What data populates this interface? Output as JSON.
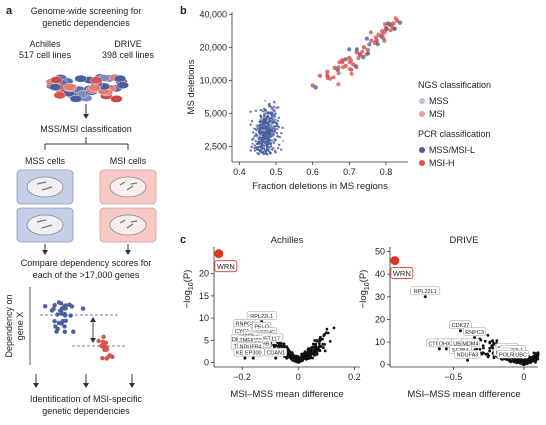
{
  "colors": {
    "mss_blue": "#4a5f9c",
    "msi_red": "#d9534f",
    "msi_pink": "#e8a0a0",
    "mss_cell_bg": "#c5cfe8",
    "msi_cell_bg": "#f6c9c6",
    "wrn_red": "#e0342b"
  },
  "panel_a": {
    "label": "a",
    "title_line1": "Genome-wide screening for",
    "title_line2": "genetic dependencies",
    "screen1_name": "Achilles",
    "screen1_count": "517 cell lines",
    "screen2_name": "DRIVE",
    "screen2_count": "398 cell lines",
    "classification": "MSS/MSI classification",
    "mss_cells": "MSS cells",
    "msi_cells": "MSI cells",
    "compare_line1": "Compare dependency scores for",
    "compare_line2": "each of the >17,000 genes",
    "ylabel_line1": "Dependency on",
    "ylabel_line2": "gene X",
    "ident_line1": "Identification of MSI-specific",
    "ident_line2": "genetic dependencies"
  },
  "chart_data": [
    {
      "panel": "b",
      "type": "scatter",
      "xlabel": "Fraction deletions in MS regions",
      "ylabel": "MS deletions",
      "log_y": true,
      "xlim": [
        0.38,
        0.86
      ],
      "ylim": [
        1800,
        42000
      ],
      "x_ticks": [
        0.4,
        0.5,
        0.6,
        0.7,
        0.8
      ],
      "x_tick_labels": [
        "0.4",
        "0.5",
        "0.6",
        "0.7",
        "0.8"
      ],
      "y_ticks": [
        2500,
        5000,
        10000,
        20000,
        40000
      ],
      "y_tick_labels": [
        "2,500",
        "5,000",
        "10,000",
        "20,000",
        "40,000"
      ],
      "legend": {
        "placement": "right",
        "ngs_title": "NGS classification",
        "ngs_items": [
          "MSS",
          "MSI"
        ],
        "pcr_title": "PCR classification",
        "pcr_items": [
          "MSS/MSI-L",
          "MSI-H"
        ]
      },
      "series": [
        {
          "name": "MSS",
          "x_range": [
            0.42,
            0.54
          ],
          "y_range": [
            2100,
            6500
          ],
          "approx_count": 500
        },
        {
          "name": "MSI",
          "points": [
            [
              0.6,
              9000
            ],
            [
              0.62,
              11000
            ],
            [
              0.64,
              12000
            ],
            [
              0.66,
              13000
            ],
            [
              0.68,
              15000
            ],
            [
              0.7,
              16000
            ],
            [
              0.72,
              18000
            ],
            [
              0.74,
              20000
            ],
            [
              0.76,
              23000
            ],
            [
              0.78,
              26000
            ],
            [
              0.8,
              30000
            ],
            [
              0.82,
              33000
            ],
            [
              0.71,
              14000
            ],
            [
              0.75,
              19000
            ],
            [
              0.79,
              28000
            ],
            [
              0.73,
              17000
            ],
            [
              0.77,
              22000
            ],
            [
              0.81,
              32000
            ],
            [
              0.83,
              35000
            ],
            [
              0.69,
              13500
            ]
          ]
        }
      ]
    },
    {
      "panel": "c",
      "type": "scatter",
      "title": "Achilles",
      "xlabel": "MSI–MSS mean difference",
      "ylabel": "−log10(P)",
      "xlim": [
        -0.3,
        0.22
      ],
      "ylim": [
        -1,
        26
      ],
      "x_ticks": [
        -0.2,
        0,
        0.2
      ],
      "x_tick_labels": [
        "−0.2",
        "0",
        "0.2"
      ],
      "y_ticks": [
        0,
        5,
        10,
        15,
        20
      ],
      "y_tick_labels": [
        "0",
        "5",
        "10",
        "15",
        "20"
      ],
      "labeled_points": [
        {
          "label": "WRN",
          "x": -0.29,
          "y": 24.5,
          "highlight": true
        },
        {
          "label": "RPL22L1",
          "x": -0.13,
          "y": 9.2
        },
        {
          "label": "RNPC3",
          "x": -0.19,
          "y": 7.5
        },
        {
          "label": "PELO",
          "x": -0.13,
          "y": 6.8
        },
        {
          "label": "CYC1",
          "x": -0.2,
          "y": 5.8
        },
        {
          "label": "SDHC",
          "x": -0.11,
          "y": 5.6
        },
        {
          "label": "NDUFS3",
          "x": -0.15,
          "y": 4.8
        },
        {
          "label": "CDC25",
          "x": -0.12,
          "y": 4.5
        },
        {
          "label": "PET117",
          "x": -0.1,
          "y": 4.2
        },
        {
          "label": "DHODH",
          "x": -0.2,
          "y": 4.0
        },
        {
          "label": "TMEM25",
          "x": -0.17,
          "y": 3.8
        },
        {
          "label": "SDHB",
          "x": -0.13,
          "y": 3.0
        },
        {
          "label": "TSC22",
          "x": -0.2,
          "y": 2.5
        },
        {
          "label": "NDUFB4",
          "x": -0.17,
          "y": 2.3
        },
        {
          "label": "KEAP1",
          "x": -0.19,
          "y": 1.0
        },
        {
          "label": "EP300",
          "x": -0.16,
          "y": 1.0
        },
        {
          "label": "CDAN1",
          "x": -0.08,
          "y": 1.0
        }
      ]
    },
    {
      "panel": "c",
      "type": "scatter",
      "title": "DRIVE",
      "xlabel": "MSI–MSS mean difference",
      "ylabel": "−log10(P)",
      "xlim": [
        -0.95,
        0.1
      ],
      "ylim": [
        -1,
        52
      ],
      "x_ticks": [
        -0.5,
        0
      ],
      "x_tick_labels": [
        "−0.5",
        "0"
      ],
      "y_ticks": [
        0,
        10,
        20,
        30,
        40,
        50
      ],
      "y_tick_labels": [
        "0",
        "10",
        "20",
        "30",
        "40",
        "50"
      ],
      "labeled_points": [
        {
          "label": "WRN",
          "x": -0.93,
          "y": 46,
          "highlight": true
        },
        {
          "label": "RPL22L1",
          "x": -0.7,
          "y": 30
        },
        {
          "label": "CDK27",
          "x": -0.45,
          "y": 15
        },
        {
          "label": "RNPC3",
          "x": -0.35,
          "y": 12
        },
        {
          "label": "CTNNB1",
          "x": -0.6,
          "y": 7
        },
        {
          "label": "DHX8",
          "x": -0.55,
          "y": 7
        },
        {
          "label": "UBA2",
          "x": -0.45,
          "y": 7
        },
        {
          "label": "MDM4",
          "x": -0.38,
          "y": 7
        },
        {
          "label": "SF3B4",
          "x": -0.45,
          "y": 4
        },
        {
          "label": "NDUFA3",
          "x": -0.4,
          "y": 2
        },
        {
          "label": "BUB1B",
          "x": -0.12,
          "y": 5
        },
        {
          "label": "MAD2L1",
          "x": -0.08,
          "y": 4
        },
        {
          "label": "USB1",
          "x": -0.15,
          "y": 3
        },
        {
          "label": "POLR3A",
          "x": -0.1,
          "y": 2
        },
        {
          "label": "UBC",
          "x": -0.02,
          "y": 2
        }
      ]
    }
  ],
  "panel_b_label": "b",
  "panel_c_label": "c"
}
